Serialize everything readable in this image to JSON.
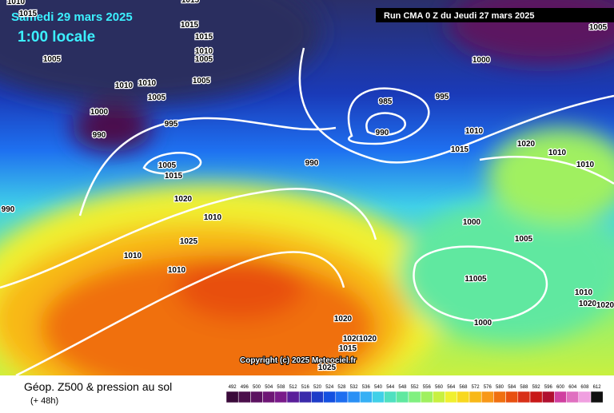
{
  "header": {
    "date": "Samedi 29 mars 2025",
    "time": "1:00 locale",
    "run": "Run CMA 0 Z du Jeudi 27 mars 2025"
  },
  "copyright": "Copyright (c) 2025 Meteociel.fr",
  "footer": {
    "title": "Géop. Z500 & pression au sol",
    "lead": "(+ 48h)"
  },
  "legend": [
    {
      "value": 492,
      "color": "#3a0a3a"
    },
    {
      "value": 496,
      "color": "#4b0e4b"
    },
    {
      "value": 500,
      "color": "#5c1260"
    },
    {
      "value": 504,
      "color": "#6e1675"
    },
    {
      "value": 508,
      "color": "#7a1a8a"
    },
    {
      "value": 512,
      "color": "#5a1e9a"
    },
    {
      "value": 516,
      "color": "#3a2aaa"
    },
    {
      "value": 520,
      "color": "#1e3cc8"
    },
    {
      "value": 524,
      "color": "#1450e0"
    },
    {
      "value": 528,
      "color": "#1e6ef0"
    },
    {
      "value": 532,
      "color": "#2a90f5"
    },
    {
      "value": 536,
      "color": "#36b0f5"
    },
    {
      "value": 540,
      "color": "#40d0e8"
    },
    {
      "value": 544,
      "color": "#50e0c0"
    },
    {
      "value": 548,
      "color": "#60e8a0"
    },
    {
      "value": 552,
      "color": "#80f080"
    },
    {
      "value": 556,
      "color": "#a0f060"
    },
    {
      "value": 560,
      "color": "#c8f040"
    },
    {
      "value": 564,
      "color": "#f0f030"
    },
    {
      "value": 568,
      "color": "#f8d820"
    },
    {
      "value": 572,
      "color": "#f8b818"
    },
    {
      "value": 576,
      "color": "#f89818"
    },
    {
      "value": 580,
      "color": "#f07010"
    },
    {
      "value": 584,
      "color": "#e85010"
    },
    {
      "value": 588,
      "color": "#d83018"
    },
    {
      "value": 592,
      "color": "#c81818"
    },
    {
      "value": 596,
      "color": "#b01030"
    },
    {
      "value": 600,
      "color": "#d040a0"
    },
    {
      "value": 604,
      "color": "#e070c0"
    },
    {
      "value": 608,
      "color": "#f0a0e0"
    },
    {
      "value": 612,
      "color": "#101010"
    }
  ],
  "isobar_labels": [
    "1010",
    "1015",
    "1015",
    "1015",
    "1015",
    "1010",
    "1005",
    "1005",
    "1010",
    "1010",
    "1005",
    "1005",
    "1000",
    "990",
    "995",
    "1005",
    "1015",
    "1020",
    "1010",
    "1025",
    "1010",
    "1010",
    "990",
    "990",
    "985",
    "995",
    "990",
    "1000",
    "1005",
    "1010",
    "1015",
    "1020",
    "1010",
    "1010",
    "1000",
    "1005",
    "11005",
    "1000",
    "1010",
    "1020",
    "1020",
    "1020",
    "1020",
    "1020",
    "1015",
    "1025"
  ]
}
